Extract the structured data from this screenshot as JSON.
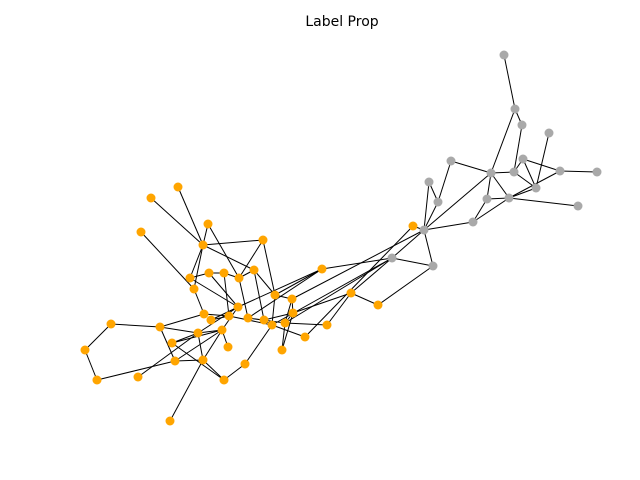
{
  "title": "Label Prop"
}
